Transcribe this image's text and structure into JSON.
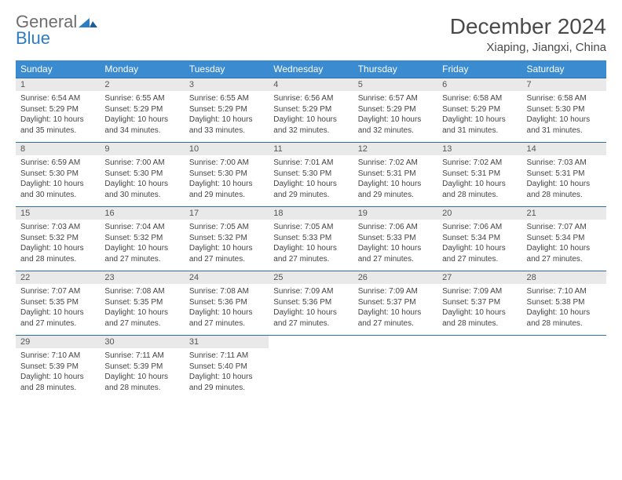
{
  "logo": {
    "general": "General",
    "blue": "Blue"
  },
  "title": "December 2024",
  "location": "Xiaping, Jiangxi, China",
  "colors": {
    "header_bg": "#3a8bd0",
    "header_text": "#ffffff",
    "daynum_bg": "#e9e9e9",
    "row_border": "#2f6ea8",
    "logo_gray": "#6e6e6e",
    "logo_blue": "#2e7cc1"
  },
  "day_names": [
    "Sunday",
    "Monday",
    "Tuesday",
    "Wednesday",
    "Thursday",
    "Friday",
    "Saturday"
  ],
  "weeks": [
    [
      {
        "n": "1",
        "sr": "6:54 AM",
        "ss": "5:29 PM",
        "dh": "10",
        "dm": "35"
      },
      {
        "n": "2",
        "sr": "6:55 AM",
        "ss": "5:29 PM",
        "dh": "10",
        "dm": "34"
      },
      {
        "n": "3",
        "sr": "6:55 AM",
        "ss": "5:29 PM",
        "dh": "10",
        "dm": "33"
      },
      {
        "n": "4",
        "sr": "6:56 AM",
        "ss": "5:29 PM",
        "dh": "10",
        "dm": "32"
      },
      {
        "n": "5",
        "sr": "6:57 AM",
        "ss": "5:29 PM",
        "dh": "10",
        "dm": "32"
      },
      {
        "n": "6",
        "sr": "6:58 AM",
        "ss": "5:29 PM",
        "dh": "10",
        "dm": "31"
      },
      {
        "n": "7",
        "sr": "6:58 AM",
        "ss": "5:30 PM",
        "dh": "10",
        "dm": "31"
      }
    ],
    [
      {
        "n": "8",
        "sr": "6:59 AM",
        "ss": "5:30 PM",
        "dh": "10",
        "dm": "30"
      },
      {
        "n": "9",
        "sr": "7:00 AM",
        "ss": "5:30 PM",
        "dh": "10",
        "dm": "30"
      },
      {
        "n": "10",
        "sr": "7:00 AM",
        "ss": "5:30 PM",
        "dh": "10",
        "dm": "29"
      },
      {
        "n": "11",
        "sr": "7:01 AM",
        "ss": "5:30 PM",
        "dh": "10",
        "dm": "29"
      },
      {
        "n": "12",
        "sr": "7:02 AM",
        "ss": "5:31 PM",
        "dh": "10",
        "dm": "29"
      },
      {
        "n": "13",
        "sr": "7:02 AM",
        "ss": "5:31 PM",
        "dh": "10",
        "dm": "28"
      },
      {
        "n": "14",
        "sr": "7:03 AM",
        "ss": "5:31 PM",
        "dh": "10",
        "dm": "28"
      }
    ],
    [
      {
        "n": "15",
        "sr": "7:03 AM",
        "ss": "5:32 PM",
        "dh": "10",
        "dm": "28"
      },
      {
        "n": "16",
        "sr": "7:04 AM",
        "ss": "5:32 PM",
        "dh": "10",
        "dm": "27"
      },
      {
        "n": "17",
        "sr": "7:05 AM",
        "ss": "5:32 PM",
        "dh": "10",
        "dm": "27"
      },
      {
        "n": "18",
        "sr": "7:05 AM",
        "ss": "5:33 PM",
        "dh": "10",
        "dm": "27"
      },
      {
        "n": "19",
        "sr": "7:06 AM",
        "ss": "5:33 PM",
        "dh": "10",
        "dm": "27"
      },
      {
        "n": "20",
        "sr": "7:06 AM",
        "ss": "5:34 PM",
        "dh": "10",
        "dm": "27"
      },
      {
        "n": "21",
        "sr": "7:07 AM",
        "ss": "5:34 PM",
        "dh": "10",
        "dm": "27"
      }
    ],
    [
      {
        "n": "22",
        "sr": "7:07 AM",
        "ss": "5:35 PM",
        "dh": "10",
        "dm": "27"
      },
      {
        "n": "23",
        "sr": "7:08 AM",
        "ss": "5:35 PM",
        "dh": "10",
        "dm": "27"
      },
      {
        "n": "24",
        "sr": "7:08 AM",
        "ss": "5:36 PM",
        "dh": "10",
        "dm": "27"
      },
      {
        "n": "25",
        "sr": "7:09 AM",
        "ss": "5:36 PM",
        "dh": "10",
        "dm": "27"
      },
      {
        "n": "26",
        "sr": "7:09 AM",
        "ss": "5:37 PM",
        "dh": "10",
        "dm": "27"
      },
      {
        "n": "27",
        "sr": "7:09 AM",
        "ss": "5:37 PM",
        "dh": "10",
        "dm": "28"
      },
      {
        "n": "28",
        "sr": "7:10 AM",
        "ss": "5:38 PM",
        "dh": "10",
        "dm": "28"
      }
    ],
    [
      {
        "n": "29",
        "sr": "7:10 AM",
        "ss": "5:39 PM",
        "dh": "10",
        "dm": "28"
      },
      {
        "n": "30",
        "sr": "7:11 AM",
        "ss": "5:39 PM",
        "dh": "10",
        "dm": "28"
      },
      {
        "n": "31",
        "sr": "7:11 AM",
        "ss": "5:40 PM",
        "dh": "10",
        "dm": "29"
      },
      null,
      null,
      null,
      null
    ]
  ]
}
